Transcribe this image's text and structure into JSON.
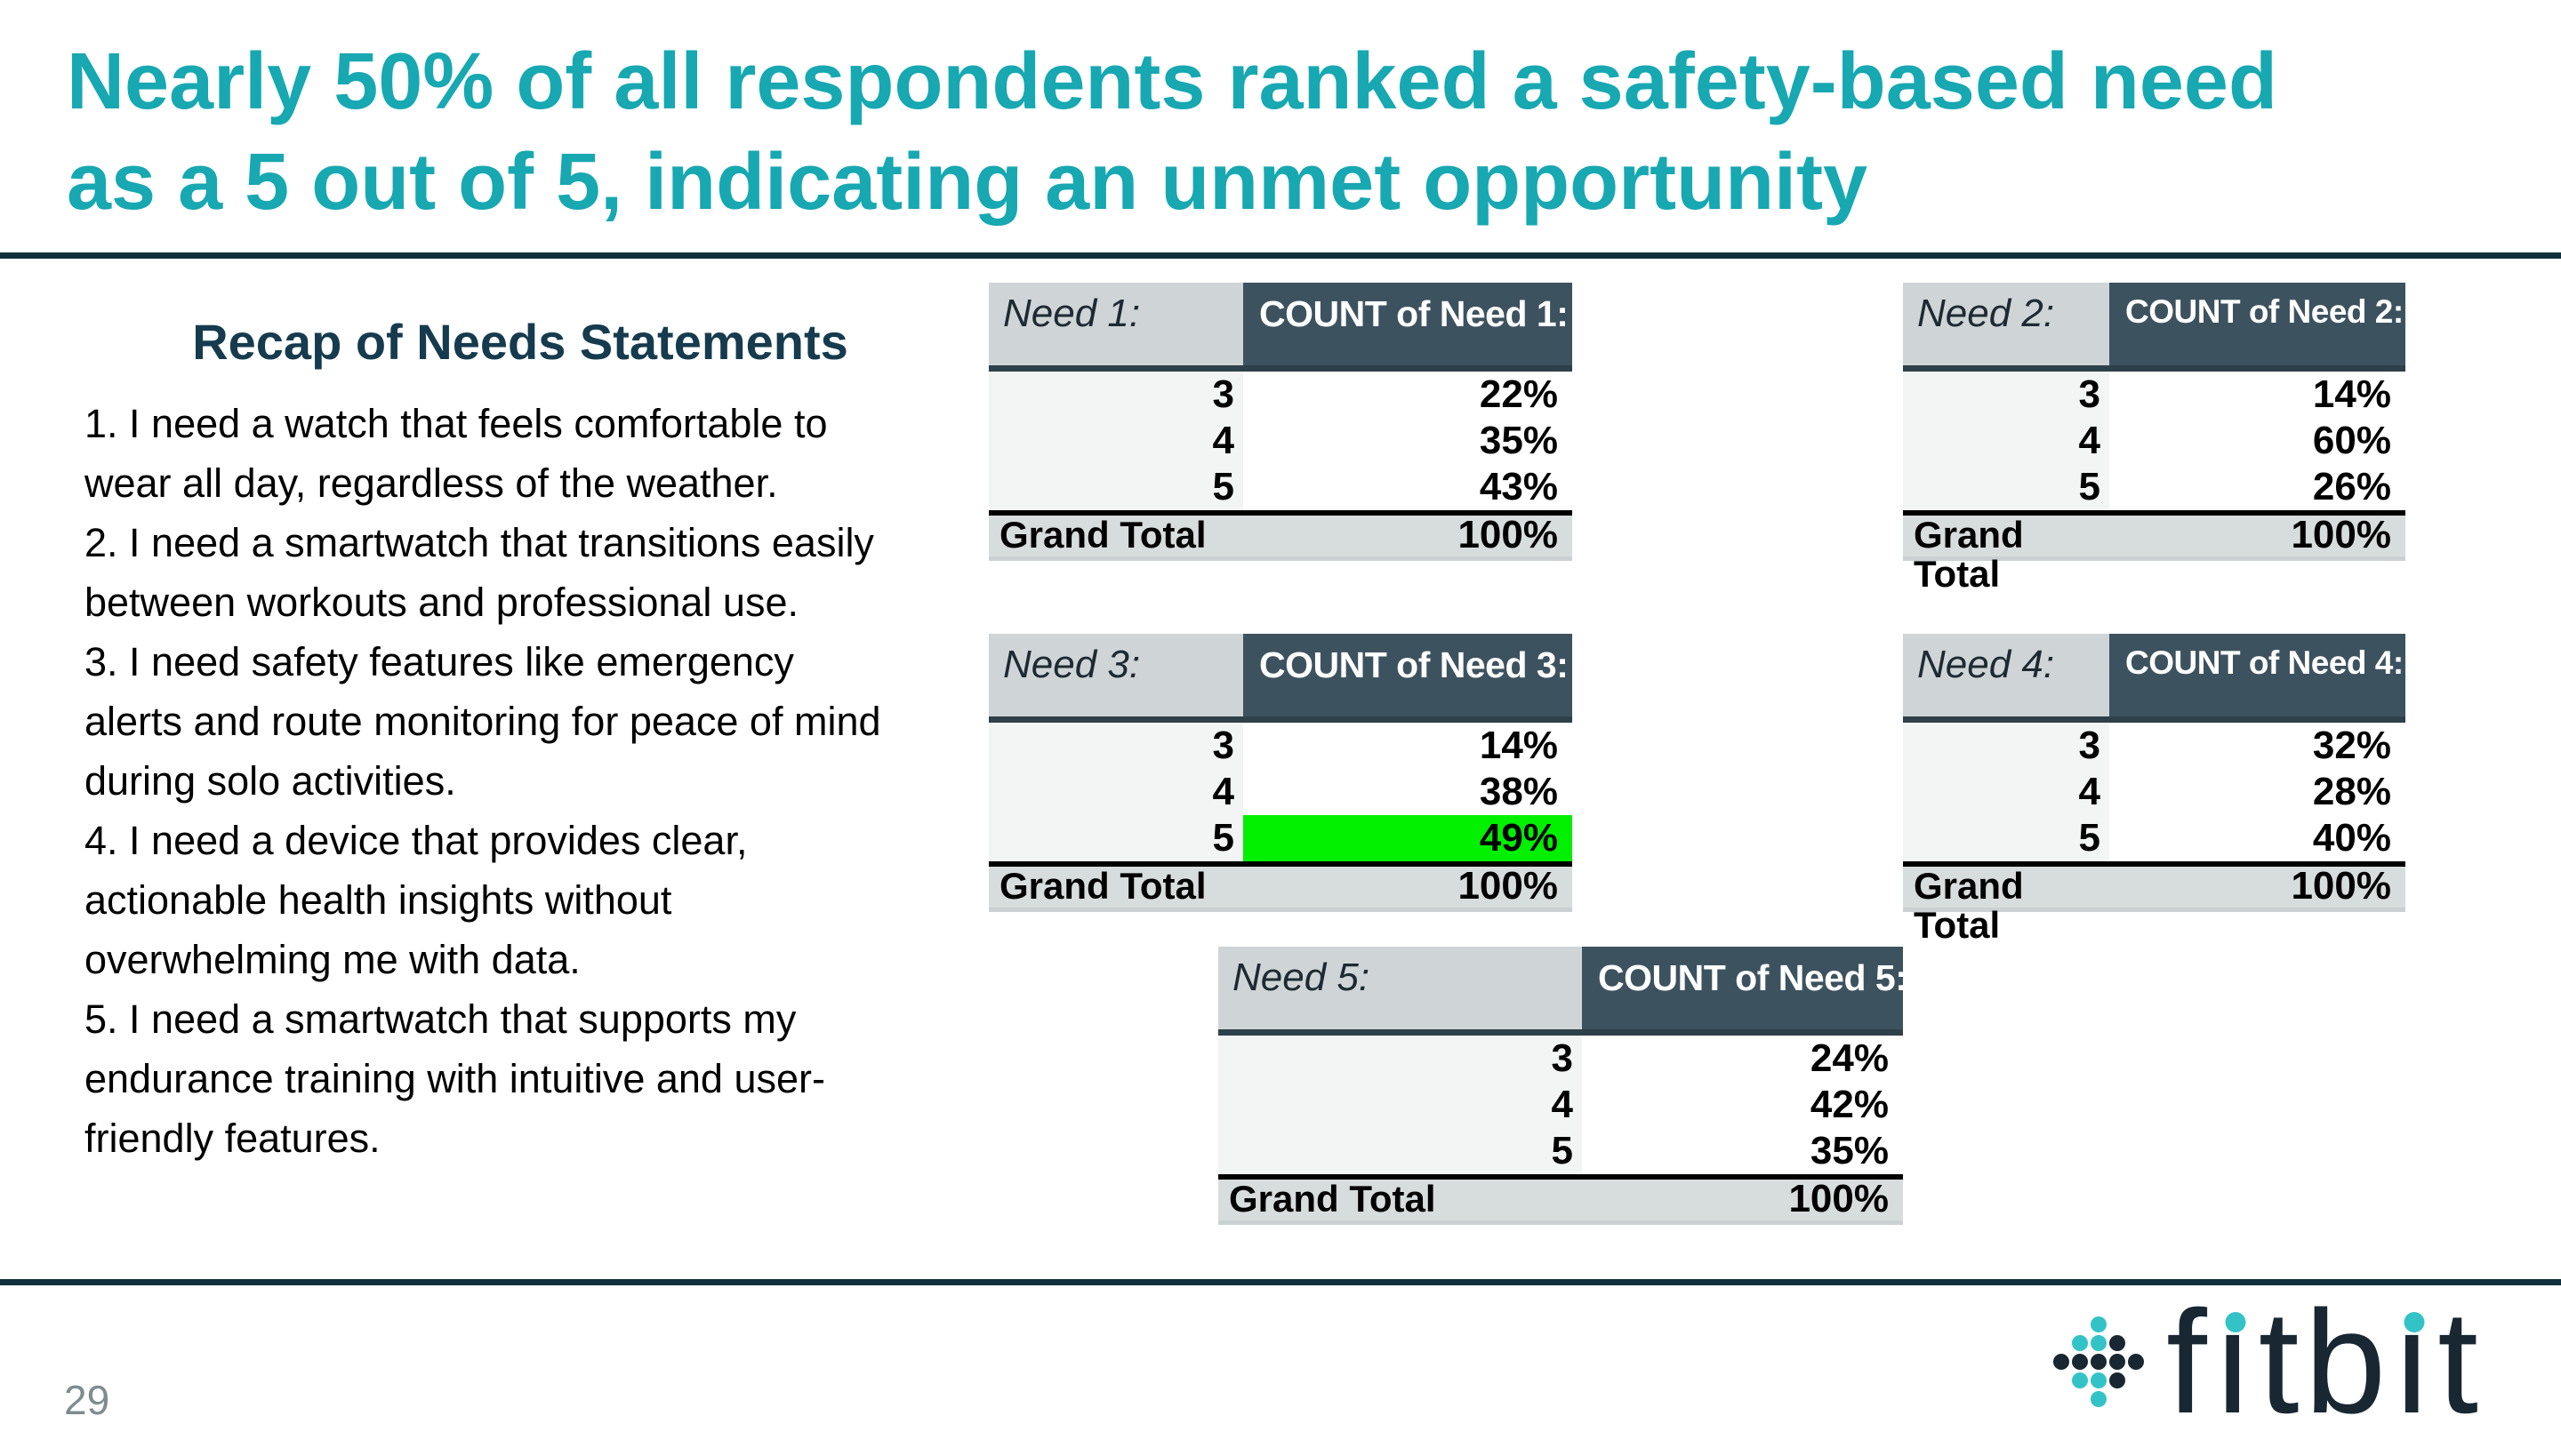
{
  "slide": {
    "title_lines": [
      "Nearly 50% of all respondents ranked a safety-based need",
      "as a 5 out of 5, indicating an unmet opportunity"
    ],
    "page_number": "29"
  },
  "recap": {
    "heading": "Recap of Needs Statements",
    "statements": [
      [
        "1. I need a watch that feels comfortable to",
        "wear all day, regardless of the weather."
      ],
      [
        "2. I need a smartwatch that transitions easily",
        "between workouts and professional use."
      ],
      [
        "3. I need safety features like emergency",
        "alerts and route monitoring for peace of mind",
        "during solo activities."
      ],
      [
        "4. I need a device that provides clear,",
        "actionable health insights without",
        "overwhelming me with data."
      ],
      [
        "5. I need a smartwatch that supports my",
        "endurance training with intuitive and user-",
        "friendly features."
      ]
    ]
  },
  "tables": [
    {
      "label": "Need 1:",
      "count_header": "COUNT of Need 1:",
      "rows": [
        [
          "3",
          "22%"
        ],
        [
          "4",
          "35%"
        ],
        [
          "5",
          "43%"
        ]
      ],
      "grand_total": [
        "Grand Total",
        "100%"
      ]
    },
    {
      "label": "Need 2:",
      "count_header": "COUNT of Need 2:",
      "rows": [
        [
          "3",
          "14%"
        ],
        [
          "4",
          "60%"
        ],
        [
          "5",
          "26%"
        ]
      ],
      "grand_total": [
        "Grand Total",
        "100%"
      ]
    },
    {
      "label": "Need 3:",
      "count_header": "COUNT of Need 3:",
      "rows": [
        [
          "3",
          "14%"
        ],
        [
          "4",
          "38%"
        ],
        [
          "5",
          "49%"
        ]
      ],
      "grand_total": [
        "Grand Total",
        "100%"
      ],
      "highlighted_row_value": "49%"
    },
    {
      "label": "Need 4:",
      "count_header": "COUNT of Need 4:",
      "rows": [
        [
          "3",
          "32%"
        ],
        [
          "4",
          "28%"
        ],
        [
          "5",
          "40%"
        ]
      ],
      "grand_total": [
        "Grand Total",
        "100%"
      ]
    },
    {
      "label": "Need 5:",
      "count_header": "COUNT of Need 5:",
      "rows": [
        [
          "3",
          "24%"
        ],
        [
          "4",
          "42%"
        ],
        [
          "5",
          "35%"
        ]
      ],
      "grand_total": [
        "Grand Total",
        "100%"
      ]
    }
  ],
  "footer": {
    "logo_text": "fitbit"
  },
  "colors": {
    "accent": "#17A8B2",
    "divider": "#12303C",
    "table_header_bg": "#3D525F",
    "highlight_green": "#00F000",
    "logo_teal": "#33C3C7",
    "logo_dark": "#182731",
    "page_number_gray": "#7E8C91"
  }
}
